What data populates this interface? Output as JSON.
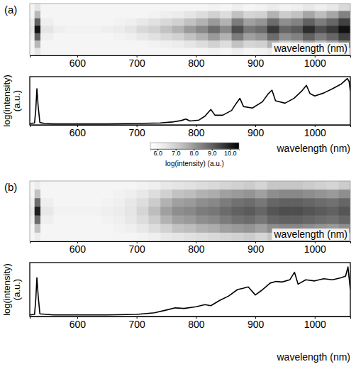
{
  "chart_data": [
    {
      "type": "heatmap",
      "title": "(a)",
      "x_label": "wavelength (nm)",
      "xlim": [
        520,
        1060
      ],
      "xticks": [
        600,
        700,
        800,
        900,
        1000
      ],
      "tick_labels": "x",
      "x_edges": [
        520,
        528,
        538,
        560,
        580,
        600,
        620,
        640,
        660,
        680,
        700,
        720,
        740,
        760,
        780,
        800,
        820,
        840,
        860,
        880,
        900,
        920,
        940,
        960,
        980,
        1000,
        1020,
        1040,
        1060
      ],
      "cells": [
        [
          6.0,
          6.5,
          6.0,
          6.0,
          6.0,
          6.0,
          6.0,
          6.0,
          6.0,
          6.0,
          6.0,
          6.0,
          6.0,
          6.0,
          6.0,
          6.0,
          6.1,
          6.0,
          6.2,
          6.0,
          6.1,
          6.3,
          6.1,
          6.2,
          6.4,
          6.2,
          6.4,
          6.8
        ],
        [
          6.0,
          7.5,
          6.0,
          6.0,
          6.0,
          6.0,
          6.0,
          6.0,
          6.0,
          6.0,
          6.0,
          6.1,
          6.2,
          6.3,
          6.5,
          6.7,
          7.0,
          6.7,
          7.3,
          6.9,
          7.0,
          7.6,
          7.1,
          7.3,
          7.8,
          7.4,
          7.8,
          8.4
        ],
        [
          6.3,
          9.0,
          6.2,
          6.0,
          6.0,
          6.0,
          6.0,
          6.0,
          6.1,
          6.2,
          6.4,
          6.6,
          6.8,
          7.0,
          7.3,
          7.6,
          8.0,
          7.6,
          8.5,
          7.9,
          8.1,
          8.8,
          8.2,
          8.4,
          9.0,
          8.5,
          8.9,
          9.5
        ],
        [
          6.5,
          10.2,
          6.5,
          6.2,
          6.1,
          6.1,
          6.1,
          6.2,
          6.3,
          6.5,
          6.8,
          7.0,
          7.3,
          7.6,
          8.0,
          8.3,
          8.8,
          8.3,
          9.3,
          8.6,
          8.8,
          9.6,
          8.9,
          9.1,
          9.8,
          9.3,
          9.6,
          10.2
        ],
        [
          6.3,
          9.0,
          6.2,
          6.0,
          6.0,
          6.0,
          6.0,
          6.0,
          6.1,
          6.2,
          6.4,
          6.6,
          6.8,
          7.0,
          7.3,
          7.6,
          8.0,
          7.6,
          8.5,
          7.9,
          8.1,
          8.8,
          8.2,
          8.4,
          9.0,
          8.5,
          8.9,
          9.5
        ],
        [
          6.0,
          7.5,
          6.0,
          6.0,
          6.0,
          6.0,
          6.0,
          6.0,
          6.0,
          6.0,
          6.0,
          6.1,
          6.2,
          6.3,
          6.5,
          6.7,
          7.0,
          6.7,
          7.3,
          6.9,
          7.0,
          7.6,
          7.1,
          7.3,
          7.8,
          7.4,
          7.8,
          8.4
        ],
        [
          6.0,
          6.5,
          6.0,
          6.0,
          6.0,
          6.0,
          6.0,
          6.0,
          6.0,
          6.0,
          6.0,
          6.0,
          6.0,
          6.0,
          6.0,
          6.0,
          6.1,
          6.0,
          6.2,
          6.0,
          6.1,
          6.3,
          6.1,
          6.2,
          6.4,
          6.2,
          6.4,
          6.8
        ]
      ],
      "colorbar": {
        "range": [
          5.6,
          10.5
        ],
        "ticks": [
          {
            "value": 6,
            "label": "6.0"
          },
          {
            "value": 7,
            "label": "7.0"
          },
          {
            "value": 8,
            "label": "8.0"
          },
          {
            "value": 9,
            "label": "9.0"
          },
          {
            "value": 10,
            "label": "10.0"
          }
        ],
        "label": "log(intensity) (a.u.)"
      }
    },
    {
      "type": "line",
      "x_label": "wavelength (nm)",
      "y_label": "log(intensity) (a.u.)",
      "xlim": [
        520,
        1060
      ],
      "ylim": [
        0,
        1
      ],
      "xticks": [
        600,
        700,
        800,
        900,
        1000
      ],
      "tick_labels": "x",
      "color": "#000000",
      "x": [
        520,
        528,
        530,
        532,
        534,
        537,
        545,
        560,
        600,
        650,
        700,
        740,
        760,
        775,
        783,
        790,
        805,
        815,
        825,
        832,
        845,
        860,
        868,
        874,
        880,
        895,
        912,
        922,
        928,
        934,
        950,
        965,
        978,
        986,
        992,
        1000,
        1015,
        1030,
        1045,
        1055,
        1058,
        1060
      ],
      "values": [
        0.03,
        0.04,
        0.3,
        0.75,
        0.4,
        0.05,
        0.03,
        0.02,
        0.02,
        0.02,
        0.03,
        0.04,
        0.06,
        0.09,
        0.12,
        0.08,
        0.1,
        0.18,
        0.32,
        0.2,
        0.2,
        0.3,
        0.45,
        0.55,
        0.38,
        0.35,
        0.48,
        0.65,
        0.72,
        0.5,
        0.45,
        0.55,
        0.7,
        0.82,
        0.65,
        0.6,
        0.66,
        0.75,
        0.85,
        0.96,
        0.9,
        0.7
      ]
    },
    {
      "type": "heatmap",
      "title": "(b)",
      "x_label": "wavelength (nm)",
      "xlim": [
        520,
        1060
      ],
      "xticks": [
        600,
        700,
        800,
        900,
        1000
      ],
      "tick_labels": "x",
      "x_edges": [
        520,
        528,
        538,
        560,
        580,
        600,
        620,
        640,
        660,
        680,
        700,
        720,
        740,
        760,
        780,
        800,
        820,
        840,
        860,
        880,
        900,
        920,
        940,
        960,
        980,
        1000,
        1020,
        1040,
        1060
      ],
      "cells": [
        [
          6.0,
          6.3,
          6.0,
          6.0,
          6.0,
          6.0,
          6.0,
          6.0,
          6.0,
          6.0,
          6.1,
          6.2,
          6.4,
          6.5,
          6.6,
          6.7,
          6.8,
          6.9,
          7.0,
          7.1,
          6.9,
          7.2,
          7.2,
          7.2,
          7.1,
          7.0,
          6.9,
          7.1
        ],
        [
          6.0,
          7.3,
          6.0,
          6.0,
          6.0,
          6.0,
          6.0,
          6.0,
          6.1,
          6.2,
          6.4,
          6.7,
          7.0,
          7.3,
          7.4,
          7.6,
          7.7,
          7.9,
          8.0,
          8.1,
          7.9,
          8.2,
          8.3,
          8.3,
          8.2,
          8.1,
          8.0,
          8.2
        ],
        [
          6.2,
          8.8,
          6.2,
          6.0,
          6.0,
          6.0,
          6.0,
          6.1,
          6.2,
          6.4,
          6.7,
          7.1,
          7.6,
          7.9,
          8.0,
          8.2,
          8.3,
          8.5,
          8.7,
          8.8,
          8.6,
          8.9,
          9.0,
          9.0,
          8.9,
          8.8,
          8.7,
          8.9
        ],
        [
          6.4,
          10.0,
          6.4,
          6.1,
          6.1,
          6.1,
          6.1,
          6.2,
          6.3,
          6.5,
          6.9,
          7.4,
          7.9,
          8.2,
          8.3,
          8.5,
          8.6,
          8.8,
          9.0,
          9.1,
          8.9,
          9.2,
          9.3,
          9.3,
          9.2,
          9.1,
          9.0,
          9.2
        ],
        [
          6.2,
          8.8,
          6.2,
          6.0,
          6.0,
          6.0,
          6.0,
          6.1,
          6.2,
          6.4,
          6.7,
          7.1,
          7.6,
          7.9,
          8.0,
          8.2,
          8.3,
          8.5,
          8.7,
          8.8,
          8.6,
          8.9,
          9.0,
          9.0,
          8.9,
          8.8,
          8.7,
          8.9
        ],
        [
          6.0,
          7.3,
          6.0,
          6.0,
          6.0,
          6.0,
          6.0,
          6.0,
          6.1,
          6.2,
          6.4,
          6.7,
          7.0,
          7.3,
          7.4,
          7.6,
          7.7,
          7.9,
          8.0,
          8.1,
          7.9,
          8.2,
          8.3,
          8.3,
          8.2,
          8.1,
          8.0,
          8.2
        ],
        [
          6.0,
          6.3,
          6.0,
          6.0,
          6.0,
          6.0,
          6.0,
          6.0,
          6.0,
          6.0,
          6.1,
          6.2,
          6.4,
          6.5,
          6.6,
          6.7,
          6.8,
          6.9,
          7.0,
          7.1,
          6.9,
          7.2,
          7.2,
          7.2,
          7.1,
          7.0,
          6.9,
          7.1
        ]
      ]
    },
    {
      "type": "line",
      "x_label": "wavelength (nm)",
      "y_label": "log(intensity) (a.u.)",
      "xlim": [
        520,
        1060
      ],
      "ylim": [
        0,
        1
      ],
      "xticks": [
        600,
        700,
        800,
        900,
        1000
      ],
      "tick_labels": "x",
      "color": "#000000",
      "x": [
        520,
        528,
        530,
        532,
        534,
        537,
        560,
        650,
        700,
        730,
        750,
        765,
        780,
        800,
        815,
        825,
        840,
        855,
        870,
        878,
        888,
        900,
        910,
        925,
        935,
        945,
        958,
        966,
        972,
        985,
        1000,
        1015,
        1030,
        1045,
        1052,
        1056,
        1060
      ],
      "values": [
        0.03,
        0.04,
        0.3,
        0.72,
        0.4,
        0.05,
        0.03,
        0.03,
        0.04,
        0.07,
        0.12,
        0.16,
        0.15,
        0.18,
        0.22,
        0.2,
        0.3,
        0.38,
        0.5,
        0.52,
        0.55,
        0.4,
        0.48,
        0.62,
        0.65,
        0.64,
        0.68,
        0.82,
        0.6,
        0.68,
        0.66,
        0.7,
        0.68,
        0.72,
        0.75,
        0.92,
        0.5
      ]
    }
  ]
}
